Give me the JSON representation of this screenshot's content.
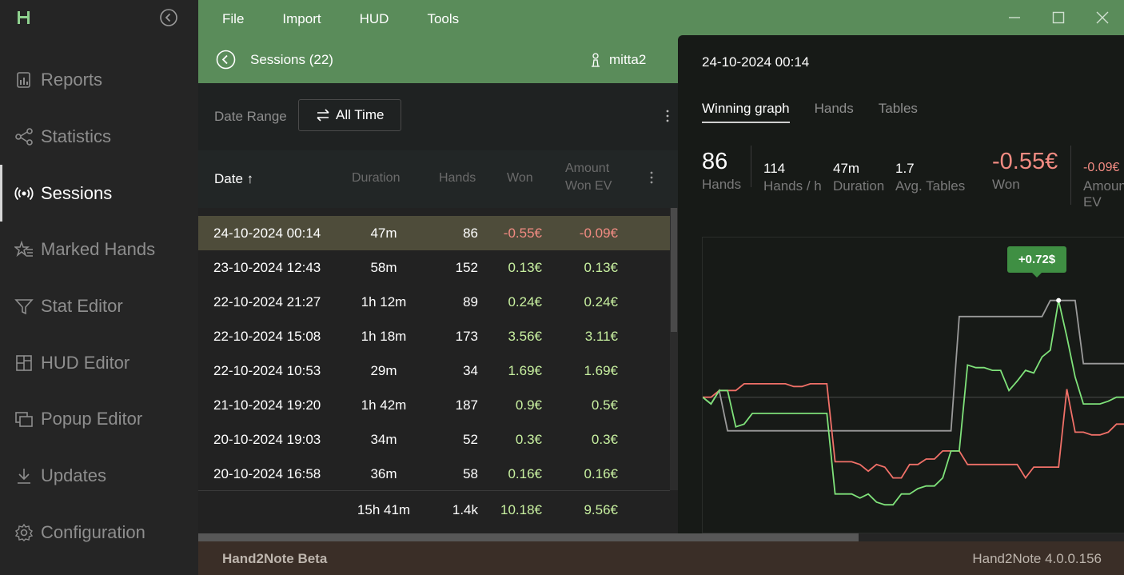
{
  "sidebar": {
    "items": [
      {
        "label": "Reports",
        "icon": "reports-icon"
      },
      {
        "label": "Statistics",
        "icon": "statistics-icon"
      },
      {
        "label": "Sessions",
        "icon": "sessions-icon",
        "active": true
      },
      {
        "label": "Marked Hands",
        "icon": "marked-hands-icon"
      },
      {
        "label": "Stat Editor",
        "icon": "filter-icon"
      },
      {
        "label": "HUD Editor",
        "icon": "hud-editor-icon"
      },
      {
        "label": "Popup Editor",
        "icon": "popup-editor-icon"
      },
      {
        "label": "Updates",
        "icon": "download-icon"
      },
      {
        "label": "Configuration",
        "icon": "gear-icon"
      }
    ]
  },
  "menu": {
    "items": [
      "File",
      "Import",
      "HUD",
      "Tools"
    ]
  },
  "header": {
    "sessions_title": "Sessions (22)",
    "user": "mitta2"
  },
  "filter": {
    "date_range_label": "Date Range",
    "all_time_label": "All Time"
  },
  "table": {
    "columns": {
      "date": "Date ↑",
      "duration": "Duration",
      "hands": "Hands",
      "won": "Won",
      "amount_won_ev_1": "Amount",
      "amount_won_ev_2": "Won EV"
    },
    "rows": [
      {
        "date": "24-10-2024 00:14",
        "duration": "47m",
        "hands": "86",
        "won": "-0.55€",
        "ev": "-0.09€"
      },
      {
        "date": "23-10-2024 12:43",
        "duration": "58m",
        "hands": "152",
        "won": "0.13€",
        "ev": "0.13€"
      },
      {
        "date": "22-10-2024 21:27",
        "duration": "1h 12m",
        "hands": "89",
        "won": "0.24€",
        "ev": "0.24€"
      },
      {
        "date": "22-10-2024 15:08",
        "duration": "1h 18m",
        "hands": "173",
        "won": "3.56€",
        "ev": "3.11€"
      },
      {
        "date": "22-10-2024 10:53",
        "duration": "29m",
        "hands": "34",
        "won": "1.69€",
        "ev": "1.69€"
      },
      {
        "date": "21-10-2024 19:20",
        "duration": "1h 42m",
        "hands": "187",
        "won": "0.9€",
        "ev": "0.5€"
      },
      {
        "date": "20-10-2024 19:03",
        "duration": "34m",
        "hands": "52",
        "won": "0.3€",
        "ev": "0.3€"
      },
      {
        "date": "20-10-2024 16:58",
        "duration": "36m",
        "hands": "58",
        "won": "0.16€",
        "ev": "0.16€"
      }
    ],
    "totals": {
      "duration": "15h 41m",
      "hands": "1.4k",
      "won": "10.18€",
      "ev": "9.56€"
    }
  },
  "detail": {
    "title": "24-10-2024 00:14",
    "tabs": [
      "Winning graph",
      "Hands",
      "Tables"
    ],
    "stats": {
      "hands_value": "86",
      "hands_label": "Hands",
      "hph_value": "114",
      "hph_label": "Hands / h",
      "duration_value": "47m",
      "duration_label": "Duration",
      "tables_value": "1.7",
      "tables_label": "Avg. Tables",
      "won_value": "-0.55€",
      "won_label": "Won",
      "ev_value": "-0.09€",
      "ev_label_1": "Amoun",
      "ev_label_2": "EV"
    },
    "tooltip": "+0.72$"
  },
  "chart_data": {
    "type": "line",
    "series": [
      {
        "color": "#7fe27a",
        "values": [
          0,
          -0.05,
          0.05,
          0.05,
          -0.22,
          -0.2,
          -0.12,
          -0.12,
          -0.12,
          -0.12,
          -0.12,
          -0.12,
          -0.12,
          -0.12,
          -0.12,
          -0.12,
          -0.72,
          -0.72,
          -0.72,
          -0.75,
          -0.72,
          -0.78,
          -0.8,
          -0.8,
          -0.72,
          -0.72,
          -0.68,
          -0.66,
          -0.66,
          -0.6,
          -0.4,
          -0.4,
          0.24,
          0.22,
          0.22,
          0.2,
          0.2,
          0.05,
          0.12,
          0.2,
          0.18,
          0.3,
          0.35,
          0.72,
          0.45,
          0.15,
          -0.05,
          -0.05,
          -0.05,
          -0.03,
          0,
          0
        ]
      },
      {
        "color": "#f07068",
        "values": [
          0,
          0,
          0.05,
          0.05,
          0.05,
          0.1,
          0.1,
          0.1,
          0.1,
          0.1,
          0.1,
          0.08,
          0.08,
          0.1,
          0.1,
          0.1,
          -0.48,
          -0.48,
          -0.48,
          -0.5,
          -0.55,
          -0.5,
          -0.52,
          -0.6,
          -0.6,
          -0.5,
          -0.5,
          -0.46,
          -0.46,
          -0.4,
          -0.4,
          -0.4,
          -0.5,
          -0.5,
          -0.5,
          -0.5,
          -0.5,
          -0.5,
          -0.5,
          -0.6,
          -0.52,
          -0.52,
          -0.52,
          -0.52,
          0.06,
          -0.26,
          -0.26,
          -0.28,
          -0.28,
          -0.26,
          -0.2,
          -0.2
        ]
      },
      {
        "color": "#9a9a9a",
        "values": [
          0,
          -0.05,
          0.05,
          -0.25,
          -0.25,
          -0.25,
          -0.25,
          -0.25,
          -0.25,
          -0.25,
          -0.25,
          -0.25,
          -0.25,
          -0.25,
          -0.25,
          -0.25,
          -0.25,
          -0.25,
          -0.25,
          -0.25,
          -0.25,
          -0.25,
          -0.25,
          -0.25,
          -0.25,
          -0.25,
          -0.25,
          -0.25,
          -0.25,
          -0.25,
          -0.25,
          0.6,
          0.6,
          0.6,
          0.6,
          0.6,
          0.6,
          0.6,
          0.6,
          0.6,
          0.6,
          0.6,
          0.72,
          0.72,
          0.72,
          0.72,
          0.25,
          0.25,
          0.25,
          0.25,
          0.25,
          0.25
        ]
      }
    ],
    "zero_line": 0,
    "ylim": [
      -0.9,
      0.95
    ],
    "highlight_point": {
      "series": 0,
      "index": 43,
      "value": 0.72
    }
  }
}
